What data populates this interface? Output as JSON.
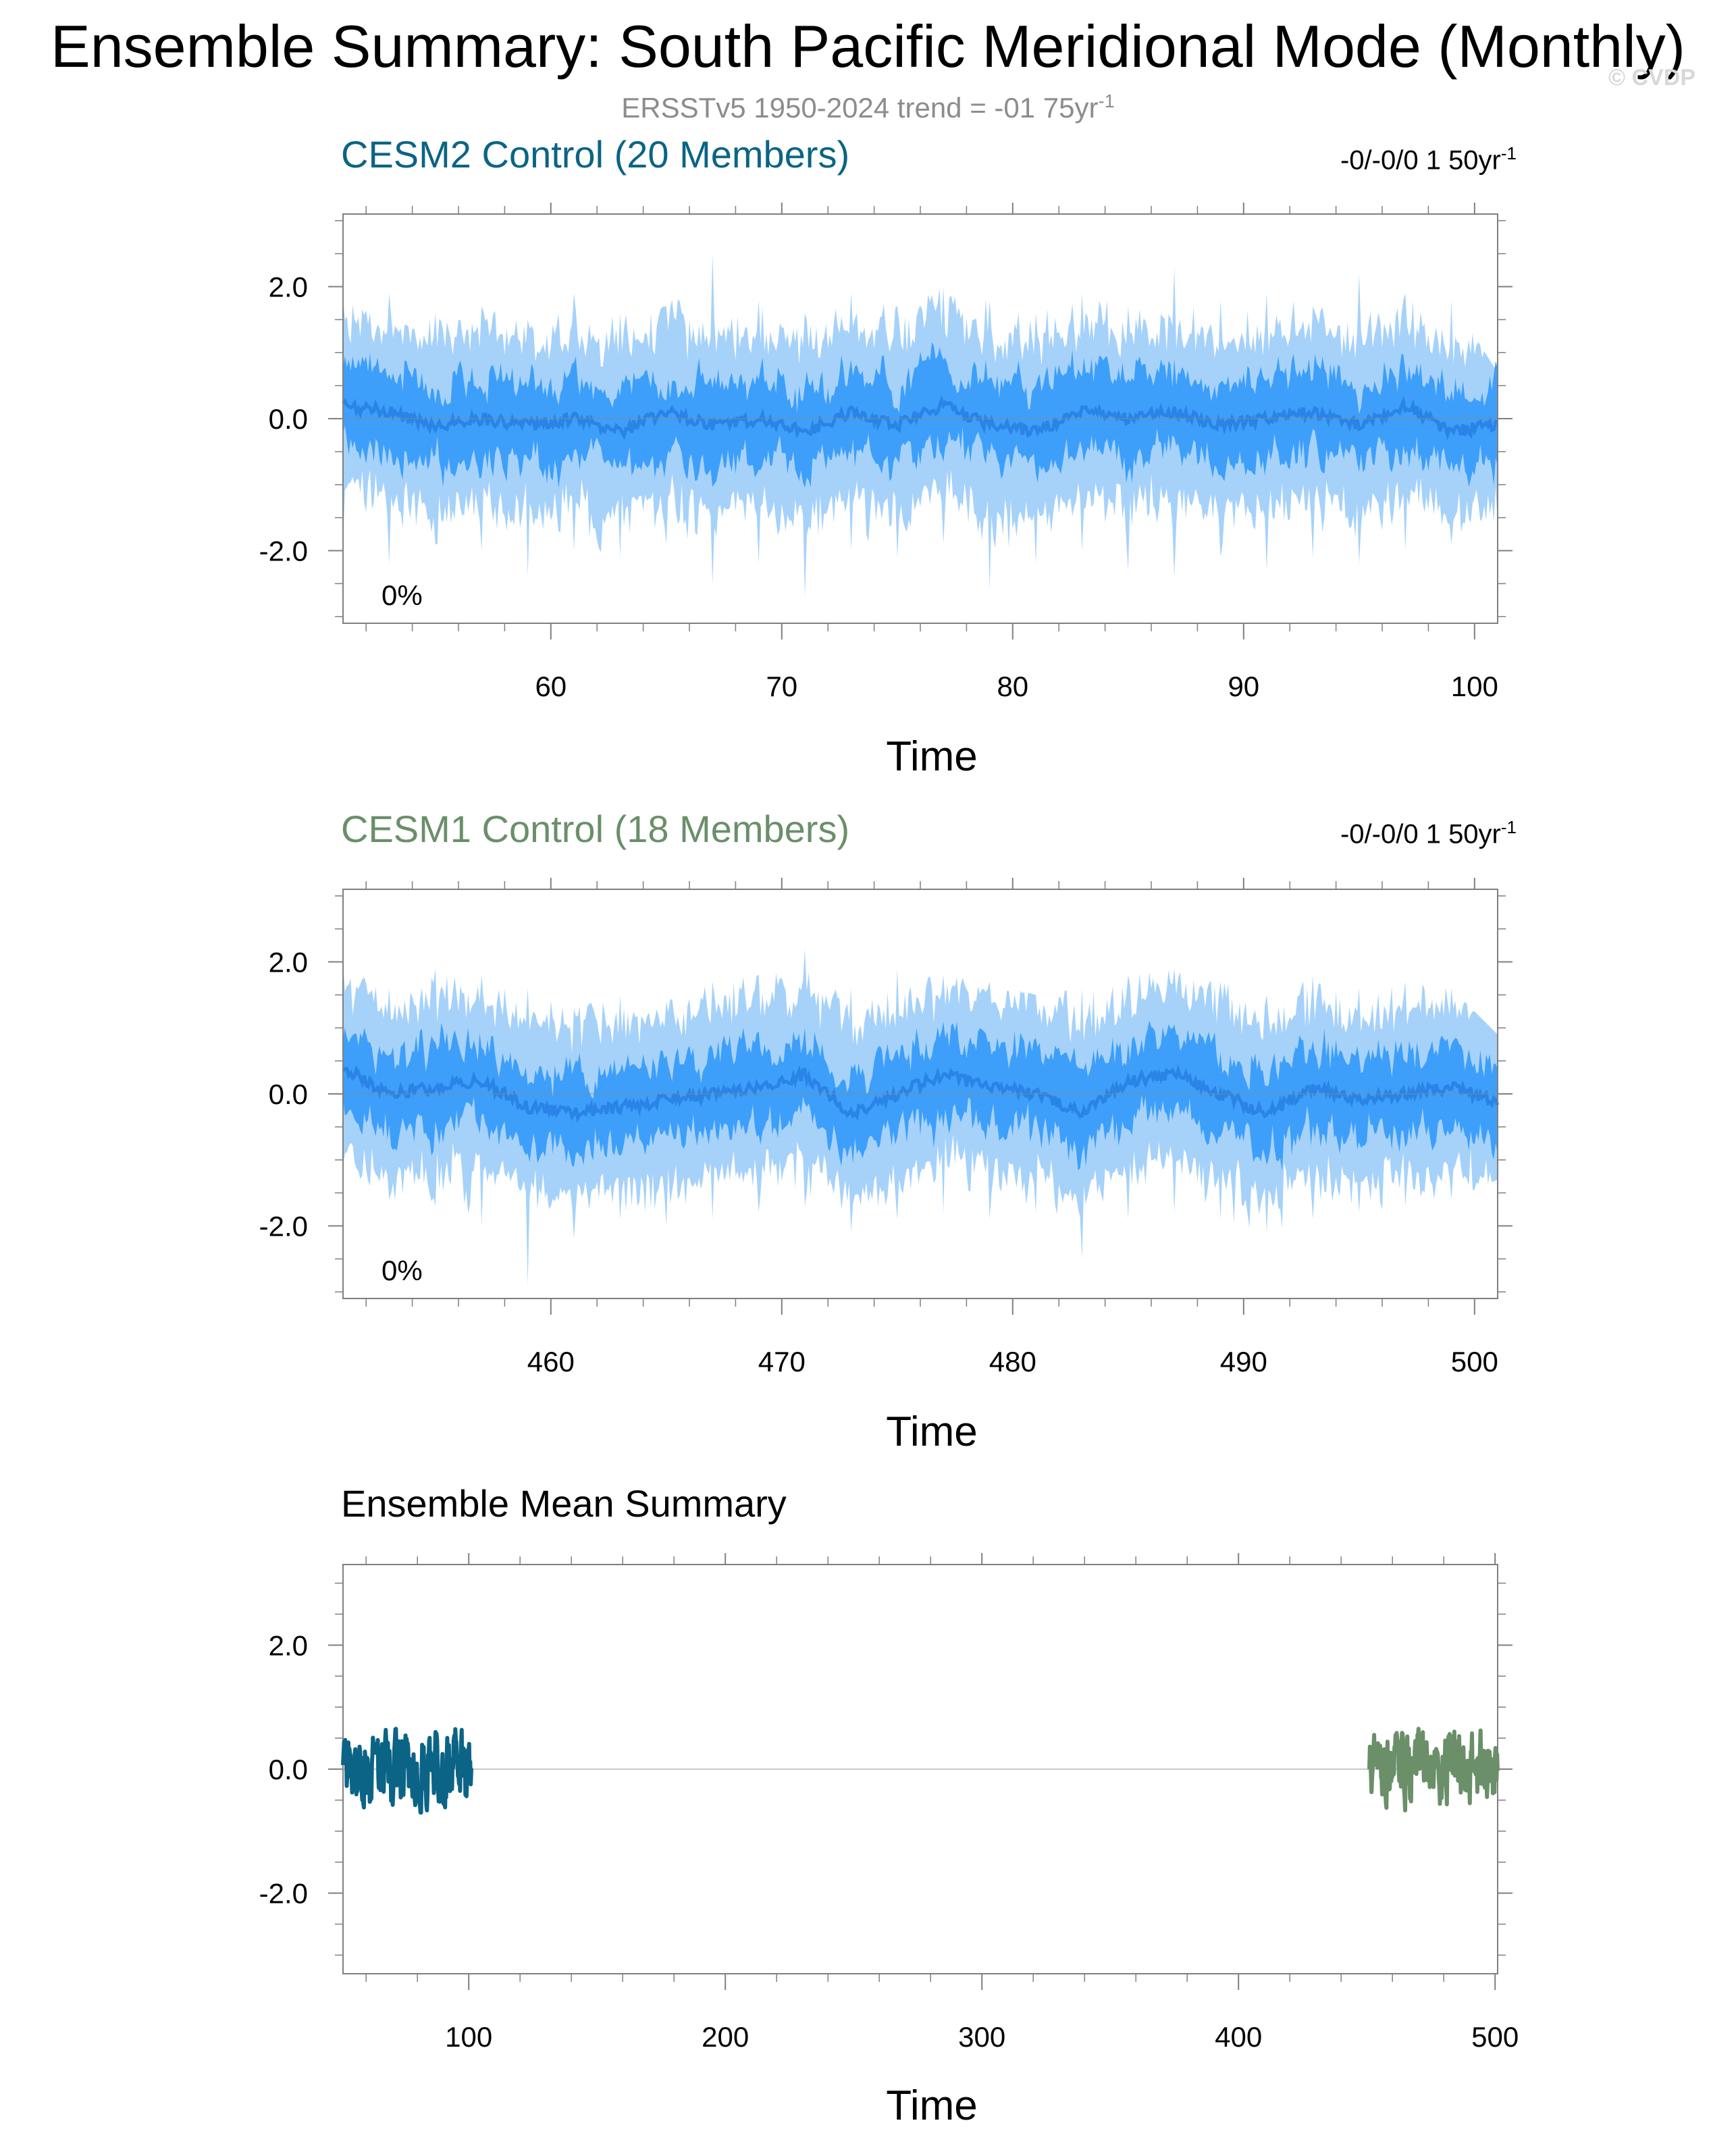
{
  "header": {
    "title": "Ensemble Summary: South Pacific Meridional Mode (Monthly)",
    "subtitle_base": "ERSSTv5 1950-2024 trend = -01 75yr",
    "subtitle_exp": "-1",
    "watermark": "© CVDP"
  },
  "colors": {
    "band_outer": "#a6d2fa",
    "band_inner": "#3d9ffa",
    "mean_line": "#2a83e6",
    "cesm2": "#0b6485",
    "cesm1": "#6a8f69",
    "axis": "#7f7f7f"
  },
  "chart_data": [
    {
      "type": "area",
      "title": "CESM2 Control (20 Members)",
      "trend_base": "-0/-0/0 1 50yr",
      "trend_exp": "-1",
      "percent_label": "0%",
      "xlabel": "Time",
      "ylabel": "",
      "xlim": [
        51,
        101
      ],
      "ylim": [
        -3.1,
        3.1
      ],
      "xticks": [
        60,
        70,
        80,
        90,
        100
      ],
      "xtick_labels": [
        "60",
        "70",
        "80",
        "90",
        "100"
      ],
      "yticks": [
        2.0,
        0.0,
        -2.0
      ],
      "ytick_labels": [
        "2.0",
        "0.0",
        "-2.0"
      ],
      "series": [
        {
          "x": [
            51,
            53,
            55,
            57,
            59,
            61,
            63,
            65,
            67,
            69,
            71,
            73,
            75,
            77,
            79,
            81,
            83,
            85,
            87,
            89,
            91,
            93,
            95,
            97,
            99,
            101
          ],
          "mean": [
            0.2,
            0.1,
            -0.1,
            0.0,
            -0.1,
            0.0,
            -0.2,
            0.1,
            -0.1,
            0.0,
            -0.2,
            0.1,
            -0.1,
            0.2,
            -0.1,
            -0.2,
            0.1,
            0.0,
            0.1,
            -0.1,
            0.0,
            0.1,
            -0.1,
            0.2,
            -0.2,
            -0.1
          ],
          "p25_p75_halfwidth": 0.7,
          "p10_p90_halfwidth": 1.2,
          "max": [
            1.8,
            1.9,
            1.6,
            1.7,
            1.5,
            1.9,
            1.6,
            1.7,
            2.5,
            1.8,
            1.6,
            1.9,
            1.7,
            2.0,
            1.8,
            1.6,
            1.9,
            1.7,
            2.3,
            1.8,
            1.9,
            1.7,
            2.2,
            1.9,
            1.8,
            0.7
          ],
          "min": [
            -1.9,
            -2.2,
            -1.9,
            -2.0,
            -2.4,
            -2.0,
            -2.1,
            -1.9,
            -2.5,
            -2.2,
            -2.7,
            -2.0,
            -2.1,
            -1.9,
            -2.6,
            -2.2,
            -2.0,
            -2.3,
            -2.4,
            -2.1,
            -2.3,
            -2.1,
            -2.2,
            -2.0,
            -1.9,
            -1.6
          ]
        }
      ]
    },
    {
      "type": "area",
      "title": "CESM1 Control (18 Members)",
      "trend_base": "-0/-0/0 1 50yr",
      "trend_exp": "-1",
      "percent_label": "0%",
      "xlabel": "Time",
      "ylabel": "",
      "xlim": [
        451,
        501
      ],
      "ylim": [
        -3.1,
        3.1
      ],
      "xticks": [
        460,
        470,
        480,
        490,
        500
      ],
      "xtick_labels": [
        "460",
        "470",
        "480",
        "490",
        "500"
      ],
      "yticks": [
        2.0,
        0.0,
        -2.0
      ],
      "ytick_labels": [
        "2.0",
        "0.0",
        "-2.0"
      ],
      "series": [
        {
          "x": [
            451,
            453,
            455,
            457,
            459,
            461,
            463,
            465,
            467,
            469,
            471,
            473,
            475,
            477,
            479,
            481,
            483,
            485,
            487,
            489,
            491,
            493,
            495,
            497,
            499,
            501
          ],
          "mean": [
            0.4,
            0.0,
            0.1,
            0.2,
            -0.2,
            -0.3,
            -0.2,
            -0.1,
            0.0,
            0.1,
            0.3,
            -0.3,
            0.0,
            0.3,
            0.1,
            0.0,
            -0.3,
            0.2,
            0.3,
            0.0,
            -0.3,
            0.1,
            -0.1,
            0.0,
            0.1,
            -0.1
          ],
          "p25_p75_halfwidth": 0.7,
          "p10_p90_halfwidth": 1.2,
          "max": [
            2.0,
            1.6,
            1.9,
            1.8,
            1.6,
            1.3,
            1.5,
            1.4,
            1.7,
            1.8,
            2.2,
            1.6,
            1.9,
            1.8,
            1.7,
            1.5,
            1.6,
            1.8,
            1.9,
            1.7,
            1.5,
            1.8,
            1.6,
            1.7,
            1.6,
            0.9
          ],
          "min": [
            -1.1,
            -1.6,
            -1.7,
            -2.0,
            -2.9,
            -2.2,
            -1.9,
            -2.0,
            -1.9,
            -1.8,
            -1.7,
            -2.1,
            -1.9,
            -1.8,
            -1.9,
            -1.8,
            -2.5,
            -1.9,
            -1.8,
            -1.9,
            -2.1,
            -1.9,
            -1.8,
            -1.7,
            -1.6,
            -1.3
          ]
        }
      ]
    },
    {
      "type": "line",
      "title": "Ensemble Mean Summary",
      "xlabel": "Time",
      "ylabel": "",
      "xlim": [
        51,
        501
      ],
      "ylim": [
        -3.3,
        3.3
      ],
      "xticks": [
        100,
        200,
        300,
        400,
        500
      ],
      "xtick_labels": [
        "100",
        "200",
        "300",
        "400",
        "500"
      ],
      "yticks": [
        2.0,
        0.0,
        -2.0
      ],
      "ytick_labels": [
        "2.0",
        "0.0",
        "-2.0"
      ],
      "series": [
        {
          "x_range": [
            51,
            101
          ],
          "amplitude": 0.6,
          "color_key": "cesm2"
        },
        {
          "x_range": [
            451,
            501
          ],
          "amplitude": 0.6,
          "color_key": "cesm1"
        }
      ]
    }
  ]
}
